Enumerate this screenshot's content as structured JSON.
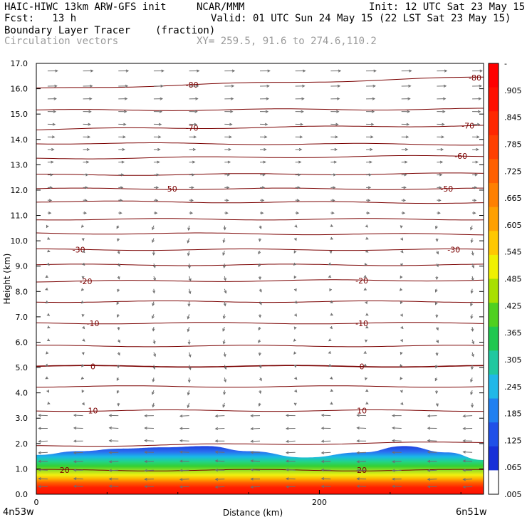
{
  "header": {
    "model": "HAIC-HIWC 13km ARW-GFS init",
    "org": "NCAR/MMM",
    "init": "Init: 12 UTC Sat 23 May 15",
    "fcst": "Fcst:   13 h",
    "valid": "Valid: 01 UTC Sun 24 May 15 (22 LST Sat 23 May 15)",
    "field": "Boundary Layer Tracer",
    "units": "(fraction)",
    "overlay": "Circulation vectors",
    "xy": "XY= 259.5, 91.6 to 274.6,110.2"
  },
  "colors": {
    "contour": "#7a0000",
    "vector": "#6e6e6e",
    "tracer_top": "#1f3fe0",
    "tracer_low": "#ff1000"
  },
  "chart_data": {
    "type": "heatmap",
    "xlabel": "Distance (km)",
    "ylabel": "Height (km)",
    "xlim": [
      0,
      316
    ],
    "ylim": [
      0,
      17
    ],
    "x_ticks": [
      {
        "value": 0,
        "label": "0"
      },
      {
        "value": 200,
        "label": "200"
      }
    ],
    "y_ticks": [
      {
        "value": 0,
        "label": "0.0"
      },
      {
        "value": 1,
        "label": "1.0"
      },
      {
        "value": 2,
        "label": "2.0"
      },
      {
        "value": 3,
        "label": "3.0"
      },
      {
        "value": 4,
        "label": "4.0"
      },
      {
        "value": 5,
        "label": "5.0"
      },
      {
        "value": 6,
        "label": "6.0"
      },
      {
        "value": 7,
        "label": "7.0"
      },
      {
        "value": 8,
        "label": "8.0"
      },
      {
        "value": 9,
        "label": "9.0"
      },
      {
        "value": 10,
        "label": "10.0"
      },
      {
        "value": 11,
        "label": "11.0"
      },
      {
        "value": 12,
        "label": "12.0"
      },
      {
        "value": 13,
        "label": "13.0"
      },
      {
        "value": 14,
        "label": "14.0"
      },
      {
        "value": 15,
        "label": "15.0"
      },
      {
        "value": 16,
        "label": "16.0"
      },
      {
        "value": 17,
        "label": "17.0"
      }
    ],
    "start_label": "4n53w",
    "end_label": "6n51w",
    "tracer_top_km": [
      {
        "x": 0,
        "z": 1.55
      },
      {
        "x": 30,
        "z": 1.7
      },
      {
        "x": 60,
        "z": 1.8
      },
      {
        "x": 90,
        "z": 1.85
      },
      {
        "x": 120,
        "z": 1.9
      },
      {
        "x": 150,
        "z": 1.7
      },
      {
        "x": 190,
        "z": 1.45
      },
      {
        "x": 230,
        "z": 1.65
      },
      {
        "x": 260,
        "z": 1.9
      },
      {
        "x": 290,
        "z": 1.65
      },
      {
        "x": 316,
        "z": 1.35
      }
    ],
    "colorbar": {
      "labels": [
        "-",
        ".905",
        ".845",
        ".785",
        ".725",
        ".665",
        ".605",
        ".545",
        ".485",
        ".425",
        ".365",
        ".305",
        ".245",
        ".185",
        ".125",
        ".065",
        ".005"
      ],
      "colors": [
        "#ff0000",
        "#ff1000",
        "#ff2800",
        "#ff4000",
        "#ff6000",
        "#ff8000",
        "#ffa000",
        "#ffc800",
        "#f0f000",
        "#a8e000",
        "#50d020",
        "#20c850",
        "#20c8a0",
        "#20b8e8",
        "#2080f0",
        "#2050e8",
        "#1830d8",
        "#ffffff"
      ]
    },
    "temperature_contours": [
      {
        "value": 20,
        "label": "20",
        "z_left": 0.95,
        "z_right": 0.95,
        "labels_at_x": [
          20,
          230
        ]
      },
      {
        "value": 15,
        "label": "",
        "z_left": 1.9,
        "z_right": 2.05,
        "labels_at_x": []
      },
      {
        "value": 10,
        "label": "10",
        "z_left": 3.3,
        "z_right": 3.3,
        "labels_at_x": [
          40,
          230
        ]
      },
      {
        "value": 5,
        "label": "",
        "z_left": 4.25,
        "z_right": 4.25,
        "labels_at_x": []
      },
      {
        "value": 0,
        "label": "0",
        "z_left": 5.05,
        "z_right": 5.05,
        "labels_at_x": [
          40,
          230
        ]
      },
      {
        "value": -5,
        "label": "",
        "z_left": 5.85,
        "z_right": 5.85,
        "labels_at_x": []
      },
      {
        "value": -10,
        "label": "-10",
        "z_left": 6.75,
        "z_right": 6.75,
        "labels_at_x": [
          40,
          230
        ]
      },
      {
        "value": -15,
        "label": "",
        "z_left": 7.6,
        "z_right": 7.6,
        "labels_at_x": []
      },
      {
        "value": -20,
        "label": "-20",
        "z_left": 8.4,
        "z_right": 8.45,
        "labels_at_x": [
          35,
          230
        ]
      },
      {
        "value": -25,
        "label": "",
        "z_left": 9.05,
        "z_right": 9.05,
        "labels_at_x": []
      },
      {
        "value": -30,
        "label": "-30",
        "z_left": 9.65,
        "z_right": 9.65,
        "labels_at_x": [
          30,
          295
        ]
      },
      {
        "value": -35,
        "label": "",
        "z_left": 10.3,
        "z_right": 10.25,
        "labels_at_x": []
      },
      {
        "value": -40,
        "label": "",
        "z_left": 10.85,
        "z_right": 10.85,
        "labels_at_x": []
      },
      {
        "value": -45,
        "label": "",
        "z_left": 11.55,
        "z_right": 11.5,
        "labels_at_x": []
      },
      {
        "value": -50,
        "label": "-50",
        "z_left": 12.05,
        "z_right": 12.05,
        "labels_at_x": [
          95,
          290
        ]
      },
      {
        "value": -55,
        "label": "",
        "z_left": 12.6,
        "z_right": 12.65,
        "labels_at_x": []
      },
      {
        "value": -60,
        "label": "-60",
        "z_left": 13.25,
        "z_right": 13.35,
        "labels_at_x": [
          300
        ]
      },
      {
        "value": -65,
        "label": "",
        "z_left": 13.85,
        "z_right": 13.8,
        "labels_at_x": []
      },
      {
        "value": -70,
        "label": "-70",
        "z_left": 14.4,
        "z_right": 14.55,
        "labels_at_x": [
          110,
          305
        ]
      },
      {
        "value": -75,
        "label": "",
        "z_left": 15.15,
        "z_right": 15.2,
        "labels_at_x": []
      },
      {
        "value": -80,
        "label": "-80",
        "z_left": 16.0,
        "z_right": 16.45,
        "labels_at_x": [
          110,
          310
        ]
      }
    ],
    "vector_field": {
      "x_spacing_km": 25,
      "z_levels_km": [
        0.3,
        0.6,
        0.95,
        1.3,
        1.65,
        2.1,
        2.6,
        3.1,
        3.6,
        4.1,
        4.6,
        5.1,
        5.6,
        6.1,
        6.6,
        7.1,
        7.6,
        8.1,
        8.6,
        9.1,
        9.6,
        10.1,
        10.6,
        11.1,
        11.6,
        12.1,
        12.6,
        13.1,
        13.6,
        14.1,
        14.6,
        15.1,
        15.6,
        16.1,
        16.7
      ],
      "u_low": -1.0,
      "u_high": 1.0
    }
  }
}
